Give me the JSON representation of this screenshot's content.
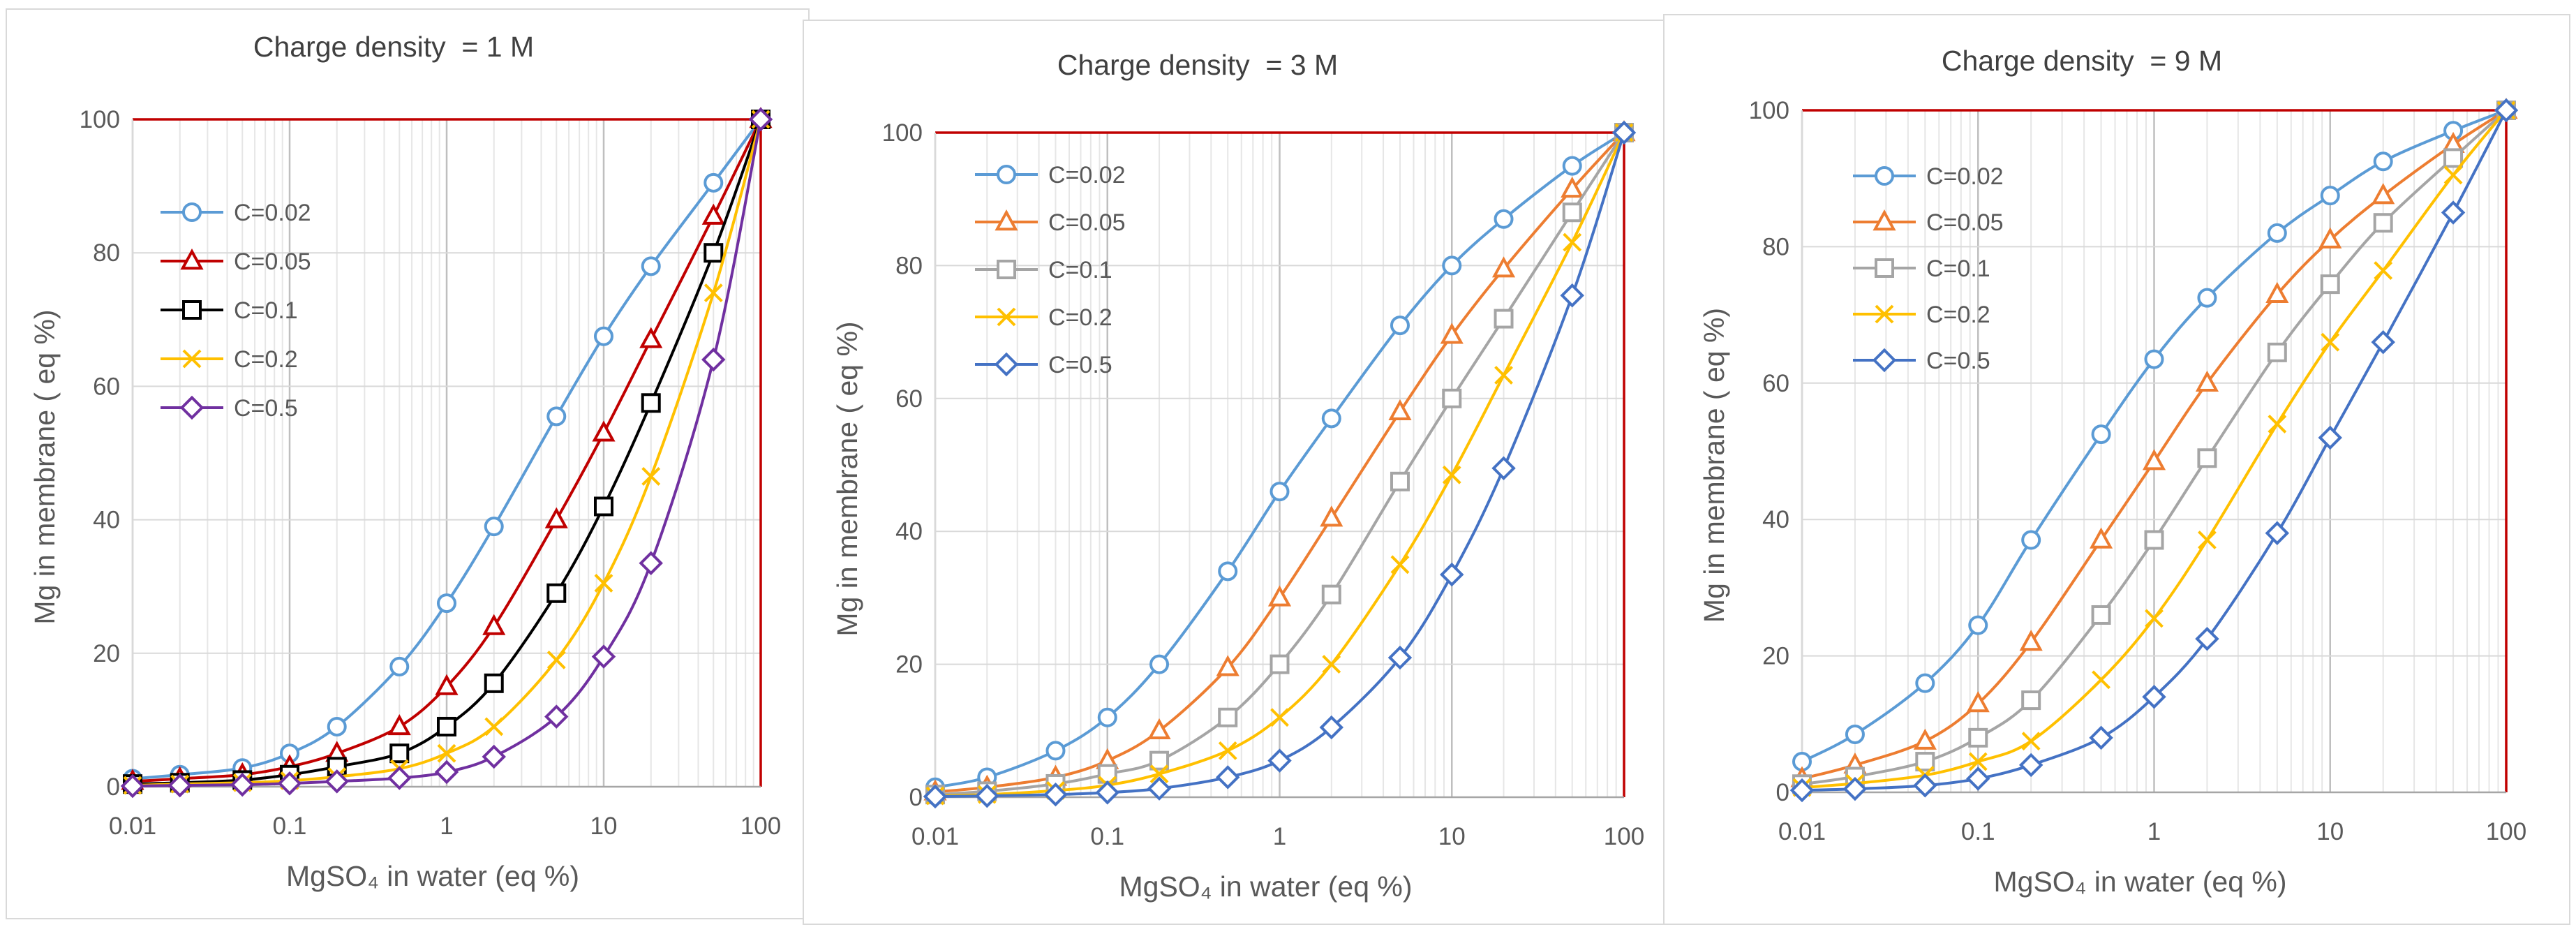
{
  "chart_data": [
    {
      "type": "line",
      "title": "Charge density  = 1 M",
      "xlabel": "MgSO₄ in water (eq %)",
      "ylabel": "Mg in membrane ( eq %)",
      "xscale": "log",
      "xlim": [
        0.01,
        100
      ],
      "ylim": [
        0,
        100
      ],
      "yticks": [
        0,
        20,
        40,
        60,
        80,
        100
      ],
      "xticks": [
        0.01,
        0.1,
        1,
        10,
        100
      ],
      "xtick_labels": [
        "0.01",
        "0.1",
        "1",
        "10",
        "100"
      ],
      "legend_position": "upper-left",
      "frame_color": "#c00000",
      "x": [
        0.01,
        0.02,
        0.05,
        0.1,
        0.2,
        0.5,
        1,
        2,
        5,
        10,
        20,
        50,
        100
      ],
      "series": [
        {
          "name": "C=0.02",
          "color": "#5b9bd5",
          "marker": "circle",
          "values": [
            1.2,
            1.8,
            2.8,
            5,
            9,
            18,
            27.5,
            39,
            55.5,
            67.5,
            78,
            90.5,
            100
          ]
        },
        {
          "name": "C=0.05",
          "color": "#c00000",
          "marker": "triangle",
          "values": [
            0.8,
            1.2,
            1.8,
            3,
            5,
            9,
            15,
            24,
            40,
            53,
            67,
            85.5,
            100
          ]
        },
        {
          "name": "C=0.1",
          "color": "#000000",
          "marker": "square",
          "values": [
            0.4,
            0.6,
            1,
            1.8,
            3,
            5,
            9,
            15.5,
            29,
            42,
            57.5,
            80,
            100
          ]
        },
        {
          "name": "C=0.2",
          "color": "#ffc000",
          "marker": "cross",
          "values": [
            0.2,
            0.4,
            0.6,
            0.9,
            1.5,
            2.7,
            5,
            9,
            19,
            30.5,
            46.5,
            74,
            100
          ]
        },
        {
          "name": "C=0.5",
          "color": "#7030a0",
          "marker": "diamond",
          "values": [
            0.1,
            0.2,
            0.3,
            0.5,
            0.8,
            1.3,
            2.2,
            4.5,
            10.5,
            19.5,
            33.5,
            64,
            100
          ]
        }
      ]
    },
    {
      "type": "line",
      "title": "Charge density  = 3 M",
      "xlabel": "MgSO₄ in water (eq %)",
      "ylabel": "Mg in membrane ( eq %)",
      "xscale": "log",
      "xlim": [
        0.01,
        100
      ],
      "ylim": [
        0,
        100
      ],
      "yticks": [
        0,
        20,
        40,
        60,
        80,
        100
      ],
      "xticks": [
        0.01,
        0.1,
        1,
        10,
        100
      ],
      "xtick_labels": [
        "0.01",
        "0.1",
        "1",
        "10",
        "100"
      ],
      "legend_position": "upper-left",
      "frame_color": "#c00000",
      "x": [
        0.01,
        0.02,
        0.05,
        0.1,
        0.2,
        0.5,
        1,
        2,
        5,
        10,
        20,
        50,
        100
      ],
      "series": [
        {
          "name": "C=0.02",
          "color": "#5b9bd5",
          "marker": "circle",
          "values": [
            1.5,
            3,
            7,
            12,
            20,
            34,
            46,
            57,
            71,
            80,
            87,
            95,
            100
          ]
        },
        {
          "name": "C=0.05",
          "color": "#ed7d31",
          "marker": "triangle",
          "values": [
            0.8,
            1.5,
            3,
            5.5,
            10,
            19.5,
            30,
            42,
            58,
            69.5,
            79.5,
            91.5,
            100
          ]
        },
        {
          "name": "C=0.1",
          "color": "#a5a5a5",
          "marker": "square",
          "values": [
            0.4,
            0.9,
            2,
            3.5,
            5.5,
            12,
            20,
            30.5,
            47.5,
            60,
            72,
            88,
            100
          ]
        },
        {
          "name": "C=0.2",
          "color": "#ffc000",
          "marker": "cross",
          "values": [
            0.2,
            0.4,
            1,
            1.8,
            3.5,
            7,
            12,
            20,
            35,
            48.5,
            63.5,
            83.5,
            100
          ]
        },
        {
          "name": "C=0.5",
          "color": "#4472c4",
          "marker": "diamond",
          "values": [
            0.1,
            0.2,
            0.4,
            0.7,
            1.3,
            3,
            5.5,
            10.5,
            21,
            33.5,
            49.5,
            75.5,
            100
          ]
        }
      ]
    },
    {
      "type": "line",
      "title": "Charge density  = 9 M",
      "xlabel": "MgSO₄ in water (eq %)",
      "ylabel": "Mg in membrane ( eq %)",
      "xscale": "log",
      "xlim": [
        0.01,
        100
      ],
      "ylim": [
        0,
        100
      ],
      "yticks": [
        0,
        20,
        40,
        60,
        80,
        100
      ],
      "xticks": [
        0.01,
        0.1,
        1,
        10,
        100
      ],
      "xtick_labels": [
        "0.01",
        "0.1",
        "1",
        "10",
        "100"
      ],
      "legend_position": "upper-left",
      "frame_color": "#c00000",
      "x": [
        0.01,
        0.02,
        0.05,
        0.1,
        0.2,
        0.5,
        1,
        2,
        5,
        10,
        20,
        50,
        100
      ],
      "series": [
        {
          "name": "C=0.02",
          "color": "#5b9bd5",
          "marker": "circle",
          "values": [
            4.5,
            8.5,
            16,
            24.5,
            37,
            52.5,
            63.5,
            72.5,
            82,
            87.5,
            92.5,
            97,
            100
          ]
        },
        {
          "name": "C=0.05",
          "color": "#ed7d31",
          "marker": "triangle",
          "values": [
            2,
            4,
            7.5,
            13,
            22,
            37,
            48.5,
            60,
            73,
            81,
            87.5,
            95,
            100
          ]
        },
        {
          "name": "C=0.1",
          "color": "#a5a5a5",
          "marker": "square",
          "values": [
            1.2,
            2.3,
            4.5,
            8,
            13.5,
            26,
            37,
            49,
            64.5,
            74.5,
            83.5,
            93,
            100
          ]
        },
        {
          "name": "C=0.2",
          "color": "#ffc000",
          "marker": "cross",
          "values": [
            0.7,
            1.3,
            2.5,
            4.5,
            7.5,
            16.5,
            25.5,
            37,
            54,
            66,
            76.5,
            90.5,
            100
          ]
        },
        {
          "name": "C=0.5",
          "color": "#4472c4",
          "marker": "diamond",
          "values": [
            0.3,
            0.5,
            1,
            2,
            4,
            8,
            14,
            22.5,
            38,
            52,
            66,
            85,
            100
          ]
        }
      ]
    }
  ]
}
